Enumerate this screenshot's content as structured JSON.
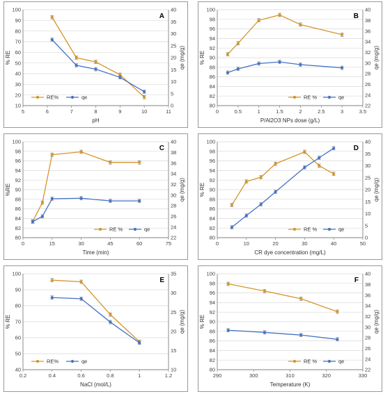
{
  "colors": {
    "re": "#D4962A",
    "qe": "#4472C4",
    "axis": "#808080",
    "grid": "#D9D9D9",
    "frame": "#7F7F7F"
  },
  "chart_data": [
    {
      "panel_letter": "A",
      "type": "line",
      "xlabel": "pH",
      "ylabel": "% RE",
      "y2label": "qe (mg/g)",
      "xlim": [
        5,
        11
      ],
      "xticks": [
        5,
        6,
        7,
        8,
        9,
        10,
        11
      ],
      "ylim": [
        10,
        100
      ],
      "yticks": [
        10,
        20,
        30,
        40,
        50,
        60,
        70,
        80,
        90,
        100
      ],
      "y2lim": [
        0,
        40
      ],
      "y2ticks": [
        0,
        5,
        10,
        15,
        20,
        25,
        30,
        35,
        40
      ],
      "legend": "bottom-left",
      "series": [
        {
          "name": "RE%",
          "axis": "left",
          "x": [
            6.2,
            7.2,
            8,
            9,
            10
          ],
          "y": [
            93,
            55,
            51,
            39,
            18
          ]
        },
        {
          "name": "qe",
          "axis": "right",
          "x": [
            6.2,
            7.2,
            8,
            9,
            10
          ],
          "y": [
            27.5,
            16.8,
            15.2,
            11.8,
            5.8
          ]
        }
      ]
    },
    {
      "panel_letter": "B",
      "type": "line",
      "xlabel": "P/Al2O3 NPs dose (g/L)",
      "ylabel": "% RE",
      "y2label": "qe (mg/g)",
      "xlim": [
        0,
        3.5
      ],
      "xticks": [
        0,
        0.5,
        1,
        1.5,
        2,
        2.5,
        3,
        3.5
      ],
      "ylim": [
        80,
        100
      ],
      "yticks": [
        80,
        82,
        84,
        86,
        88,
        90,
        92,
        94,
        96,
        98,
        100
      ],
      "y2lim": [
        22,
        40
      ],
      "y2ticks": [
        22,
        24,
        26,
        28,
        30,
        32,
        34,
        36,
        38,
        40
      ],
      "legend": "bottom-right",
      "series": [
        {
          "name": "RE %",
          "axis": "left",
          "x": [
            0.25,
            0.5,
            1,
            1.5,
            2,
            3
          ],
          "y": [
            90.7,
            93,
            97.8,
            98.9,
            96.9,
            94.8
          ]
        },
        {
          "name": "qe",
          "axis": "right",
          "x": [
            0.25,
            0.5,
            1,
            1.5,
            2,
            3
          ],
          "y": [
            28.2,
            28.9,
            29.9,
            30.2,
            29.7,
            29.1
          ]
        }
      ]
    },
    {
      "panel_letter": "C",
      "type": "line",
      "xlabel": "Time (min)",
      "ylabel": "%RE",
      "y2label": "qe (mg/g)",
      "xlim": [
        0,
        75
      ],
      "xticks": [
        0,
        15,
        30,
        45,
        60,
        75
      ],
      "ylim": [
        80,
        100
      ],
      "yticks": [
        80,
        82,
        84,
        86,
        88,
        90,
        92,
        94,
        96,
        98,
        100
      ],
      "y2lim": [
        22,
        40
      ],
      "y2ticks": [
        22,
        24,
        26,
        28,
        30,
        32,
        34,
        36,
        38,
        40
      ],
      "legend": "bottom-right",
      "series": [
        {
          "name": "RE %",
          "axis": "left",
          "x": [
            5,
            10,
            15,
            30,
            45,
            60
          ],
          "y": [
            83.4,
            87.3,
            97.3,
            97.9,
            95.7,
            95.7
          ]
        },
        {
          "name": "qe",
          "axis": "right",
          "x": [
            5,
            10,
            15,
            30,
            45,
            60
          ],
          "y": [
            25.0,
            26.0,
            29.3,
            29.4,
            28.9,
            28.9
          ]
        }
      ]
    },
    {
      "panel_letter": "D",
      "type": "line",
      "xlabel": "CR dye concentration (mg/L)",
      "ylabel": "% RE",
      "y2label": "qe (mg/g)",
      "xlim": [
        0,
        50
      ],
      "xticks": [
        0,
        10,
        20,
        30,
        40,
        50
      ],
      "ylim": [
        80,
        100
      ],
      "yticks": [
        80,
        82,
        84,
        86,
        88,
        90,
        92,
        94,
        96,
        98,
        100
      ],
      "y2lim": [
        0,
        40
      ],
      "y2ticks": [
        0,
        5,
        10,
        15,
        20,
        25,
        30,
        35,
        40
      ],
      "legend": "bottom-right",
      "series": [
        {
          "name": "RE %",
          "axis": "left",
          "x": [
            5,
            10,
            15,
            20,
            30,
            35,
            40
          ],
          "y": [
            86.8,
            91.7,
            92.6,
            95.4,
            97.9,
            95,
            93.3
          ]
        },
        {
          "name": "qe",
          "axis": "right",
          "x": [
            5,
            10,
            15,
            20,
            30,
            35,
            40
          ],
          "y": [
            4.3,
            9.2,
            13.9,
            19.1,
            29.3,
            33.3,
            37.3
          ]
        }
      ]
    },
    {
      "panel_letter": "E",
      "type": "line",
      "xlabel": "NaCl (mol/L)",
      "ylabel": "% RE",
      "y2label": "qe (mg/g)",
      "xlim": [
        0.2,
        1.2
      ],
      "xticks": [
        0.2,
        0.4,
        0.6,
        0.8,
        1,
        1.2
      ],
      "ylim": [
        40,
        100
      ],
      "yticks": [
        40,
        50,
        60,
        70,
        80,
        90,
        100
      ],
      "y2lim": [
        10,
        35
      ],
      "y2ticks": [
        10,
        15,
        20,
        25,
        30,
        35
      ],
      "legend": "bottom-left",
      "series": [
        {
          "name": "RE%",
          "axis": "left",
          "x": [
            0.4,
            0.6,
            0.8,
            1
          ],
          "y": [
            96,
            95,
            74.5,
            57.5
          ]
        },
        {
          "name": "qe",
          "axis": "right",
          "x": [
            0.4,
            0.6,
            0.8,
            1
          ],
          "y": [
            28.8,
            28.5,
            22.4,
            17.0
          ]
        }
      ]
    },
    {
      "panel_letter": "F",
      "type": "line",
      "xlabel": "Temperature (K)",
      "ylabel": "% RE",
      "y2label": "qe (mg/g)",
      "xlim": [
        290,
        330
      ],
      "xticks": [
        290,
        300,
        310,
        320,
        330
      ],
      "ylim": [
        80,
        100
      ],
      "yticks": [
        80,
        82,
        84,
        86,
        88,
        90,
        92,
        94,
        96,
        98,
        100
      ],
      "y2lim": [
        22,
        40
      ],
      "y2ticks": [
        22,
        24,
        26,
        28,
        30,
        32,
        34,
        36,
        38,
        40
      ],
      "legend": "bottom-right",
      "series": [
        {
          "name": "RE %",
          "axis": "left",
          "x": [
            293,
            303,
            313,
            323
          ],
          "y": [
            97.9,
            96.4,
            94.8,
            92.1
          ]
        },
        {
          "name": "qe",
          "axis": "right",
          "x": [
            293,
            303,
            313,
            323
          ],
          "y": [
            29.4,
            29.0,
            28.5,
            27.7
          ]
        }
      ]
    }
  ]
}
